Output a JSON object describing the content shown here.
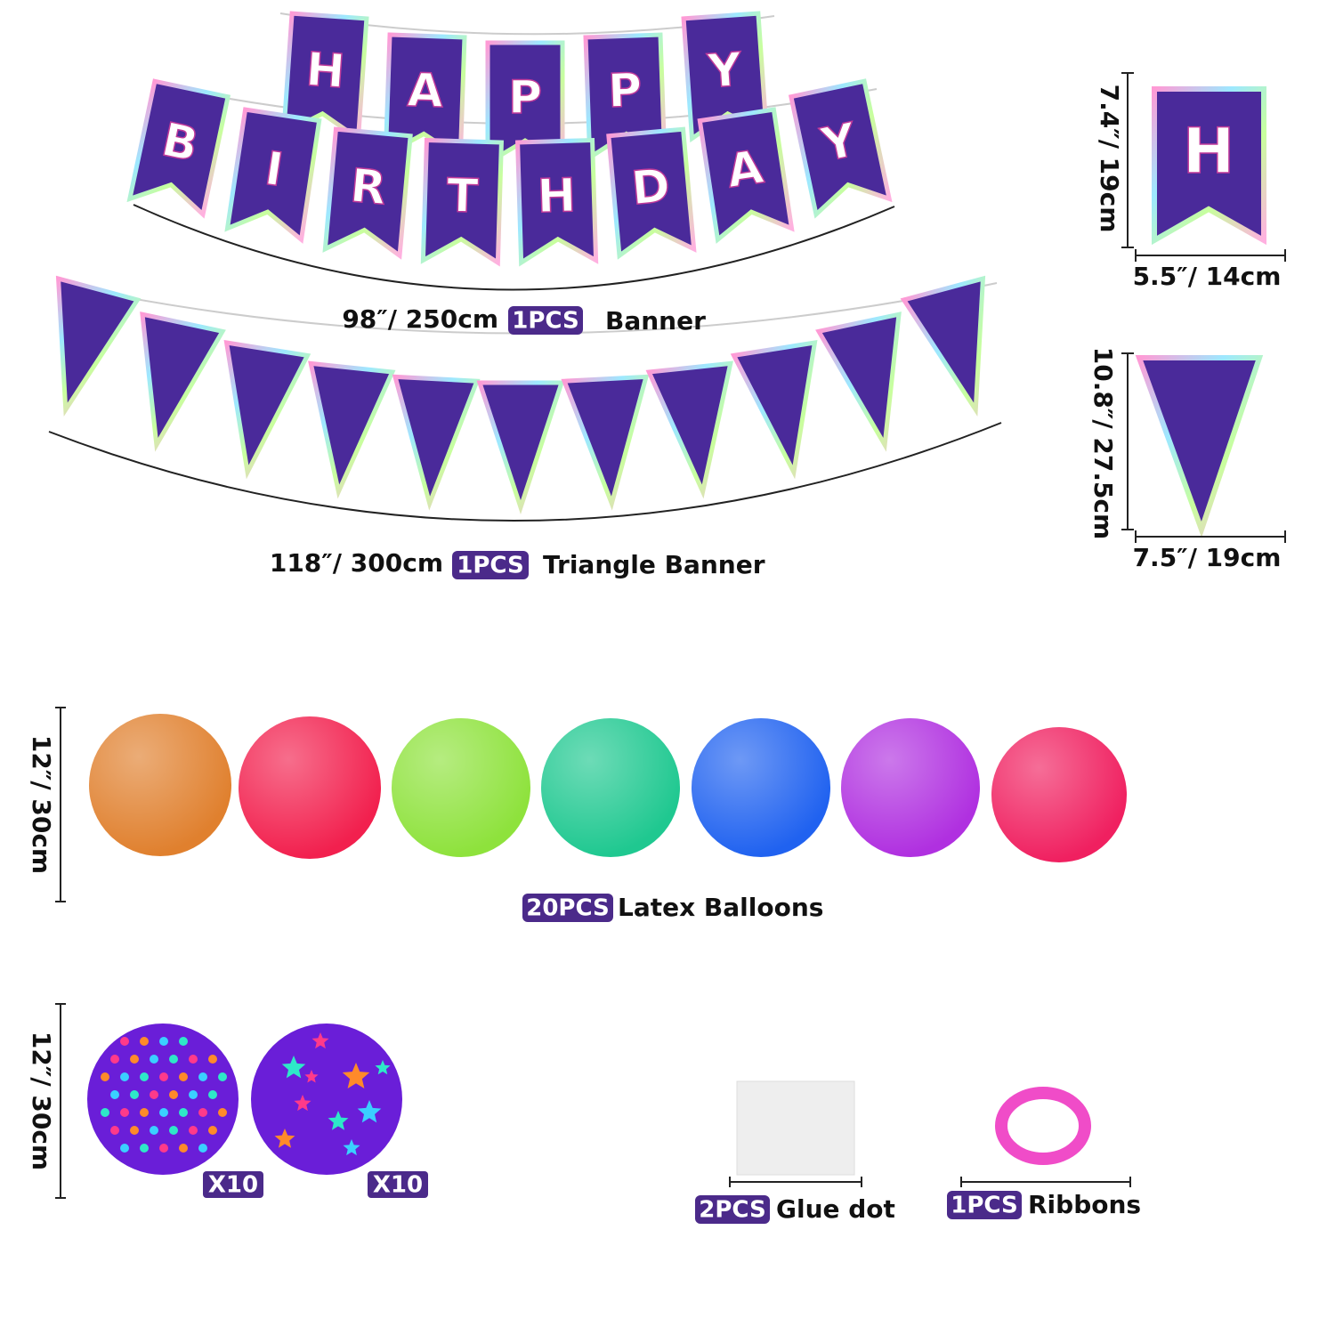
{
  "banner": {
    "top_letters": [
      "H",
      "A",
      "P",
      "P",
      "Y"
    ],
    "bottom_letters": [
      "B",
      "I",
      "R",
      "T",
      "H",
      "D",
      "A",
      "Y"
    ],
    "size": "98″/ 250cm",
    "count": "1PCS",
    "label": "Banner"
  },
  "triangle_banner": {
    "size": "118″/ 300cm",
    "count": "1PCS",
    "label": "Triangle Banner"
  },
  "flag_detail": {
    "letter": "H",
    "height": "7.4″/ 19cm",
    "width": "5.5″/ 14cm"
  },
  "triangle_detail": {
    "height": "10.8″/ 27.5cm",
    "width": "7.5″/ 19cm"
  },
  "latex_balloons": {
    "size": "12″/ 30cm",
    "count": "20PCS",
    "label": "Latex Balloons"
  },
  "printed_balloons": {
    "size": "12″/ 30cm",
    "dots_count": "X10",
    "stars_count": "X10"
  },
  "glue_dot": {
    "count": "2PCS",
    "label": "Glue dot"
  },
  "ribbons": {
    "count": "1PCS",
    "label": "Ribbons"
  }
}
